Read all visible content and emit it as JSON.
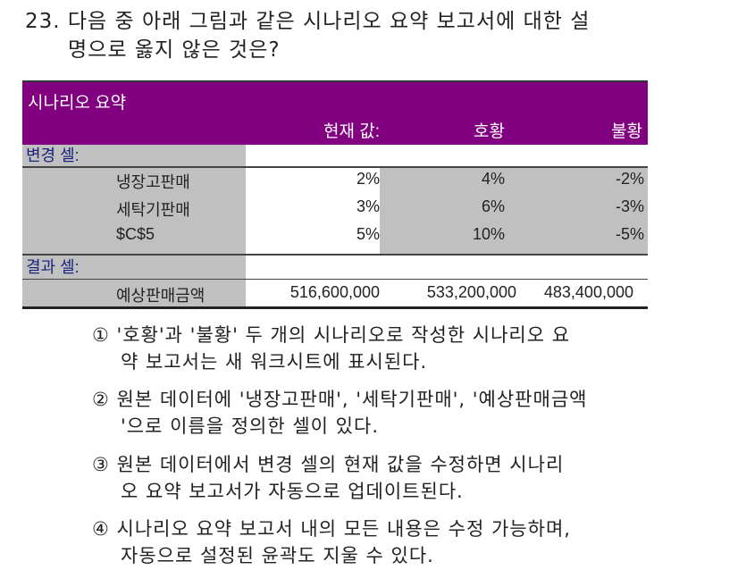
{
  "question": {
    "number": "23.",
    "line1": "다음 중 아래 그림과 같은 시나리오 요약 보고서에 대한 설",
    "line2": "명으로 옳지 않은 것은?"
  },
  "table": {
    "title": "시나리오 요약",
    "columns": [
      "현재 값:",
      "호황",
      "불황"
    ],
    "changing_cells_label": "변경 셀:",
    "changing_rows": [
      {
        "name": "냉장고판매",
        "values": [
          "2%",
          "4%",
          "-2%"
        ]
      },
      {
        "name": "세탁기판매",
        "values": [
          "3%",
          "6%",
          "-3%"
        ]
      },
      {
        "name": "$C$5",
        "values": [
          "5%",
          "10%",
          "-5%"
        ]
      }
    ],
    "result_cells_label": "결과 셀:",
    "result_rows": [
      {
        "name": "예상판매금액",
        "values": [
          "516,600,000",
          "533,200,000",
          "483,400,000"
        ]
      }
    ],
    "header_color": "#800080"
  },
  "options": [
    {
      "line1": "① '호황'과 '불황' 두 개의 시나리오로 작성한 시나리오 요",
      "line2": "약 보고서는 새 워크시트에 표시된다."
    },
    {
      "line1": "② 원본 데이터에 '냉장고판매', '세탁기판매', '예상판매금액",
      "line2": "'으로 이름을 정의한 셀이 있다."
    },
    {
      "line1": "③ 원본 데이터에서 변경 셀의 현재 값을 수정하면 시나리",
      "line2": "오 요약 보고서가 자동으로 업데이트된다."
    },
    {
      "line1": "④ 시나리오 요약 보고서 내의 모든 내용은 수정 가능하며,",
      "line2": "자동으로 설정된 윤곽도 지울 수 있다."
    }
  ]
}
